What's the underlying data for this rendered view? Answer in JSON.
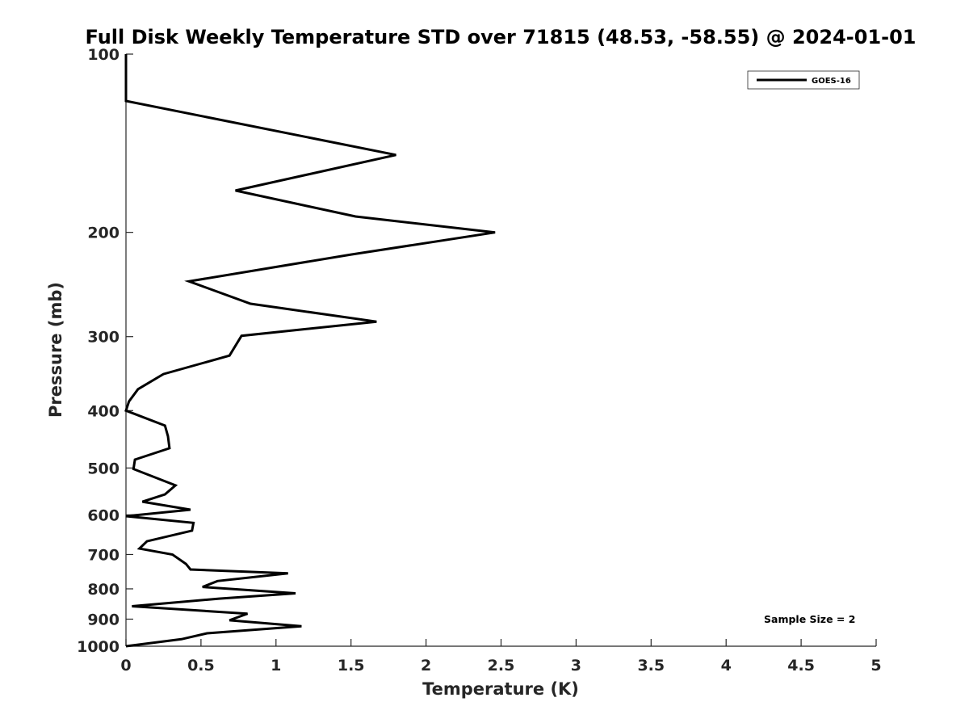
{
  "chart_data": {
    "type": "line",
    "title": "Full Disk Weekly Temperature STD over 71815 (48.53, -58.55) @ 2024-01-01",
    "xlabel": "Temperature (K)",
    "ylabel": "Pressure (mb)",
    "xlim": [
      0,
      5
    ],
    "ylim": [
      1000,
      100
    ],
    "yscale": "log",
    "y_reversed": true,
    "x_ticks": [
      0,
      0.5,
      1,
      1.5,
      2,
      2.5,
      3,
      3.5,
      4,
      4.5,
      5
    ],
    "x_tick_labels": [
      "0",
      "0.5",
      "1",
      "1.5",
      "2",
      "2.5",
      "3",
      "3.5",
      "4",
      "4.5",
      "5"
    ],
    "y_ticks": [
      100,
      200,
      300,
      400,
      500,
      600,
      700,
      800,
      900,
      1000
    ],
    "y_tick_labels": [
      "100",
      "200",
      "300",
      "400",
      "500",
      "600",
      "700",
      "800",
      "900",
      "1000"
    ],
    "grid": false,
    "legend_position": "top-right",
    "series": [
      {
        "name": "GOES-16",
        "color": "#000000",
        "points": [
          [
            0.0,
            100
          ],
          [
            0.0,
            120
          ],
          [
            1.8,
            148
          ],
          [
            0.73,
            170
          ],
          [
            1.53,
            188
          ],
          [
            2.46,
            200
          ],
          [
            1.5,
            218
          ],
          [
            0.42,
            242
          ],
          [
            0.83,
            264
          ],
          [
            1.67,
            283
          ],
          [
            0.77,
            299
          ],
          [
            0.69,
            323
          ],
          [
            0.25,
            347
          ],
          [
            0.08,
            368
          ],
          [
            0.02,
            386
          ],
          [
            0.0,
            400
          ],
          [
            0.26,
            424
          ],
          [
            0.28,
            442
          ],
          [
            0.29,
            463
          ],
          [
            0.06,
            484
          ],
          [
            0.05,
            502
          ],
          [
            0.33,
            535
          ],
          [
            0.26,
            554
          ],
          [
            0.11,
            570
          ],
          [
            0.43,
            588
          ],
          [
            0.0,
            603
          ],
          [
            0.45,
            619
          ],
          [
            0.44,
            638
          ],
          [
            0.14,
            665
          ],
          [
            0.09,
            684
          ],
          [
            0.31,
            700
          ],
          [
            0.4,
            726
          ],
          [
            0.43,
            742
          ],
          [
            1.08,
            753
          ],
          [
            0.61,
            776
          ],
          [
            0.51,
            794
          ],
          [
            1.13,
            814
          ],
          [
            0.62,
            831
          ],
          [
            0.04,
            856
          ],
          [
            0.81,
            881
          ],
          [
            0.69,
            904
          ],
          [
            1.17,
            925
          ],
          [
            0.54,
            951
          ],
          [
            0.37,
            973
          ],
          [
            0.0,
            1000
          ]
        ]
      }
    ],
    "annotations": [
      "Sample Size = 2"
    ]
  }
}
